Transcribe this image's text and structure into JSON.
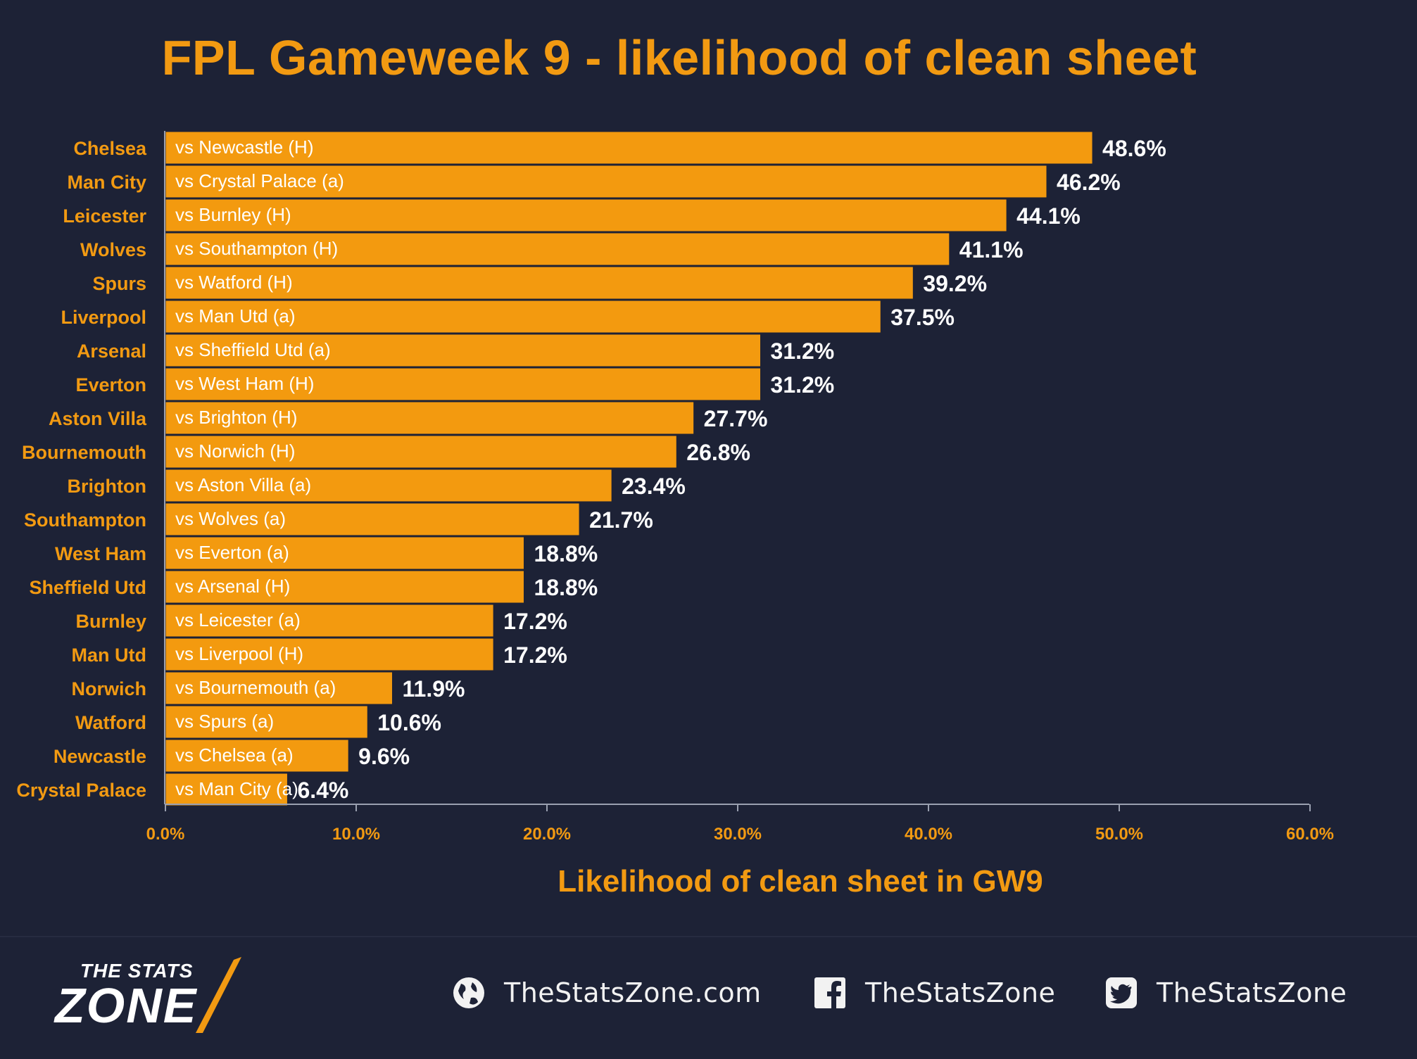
{
  "title": "FPL Gameweek 9 - likelihood of clean sheet",
  "chart_data": {
    "type": "bar",
    "orientation": "horizontal",
    "title": "FPL Gameweek 9 - likelihood of clean sheet",
    "xlabel": "Likelihood of clean sheet in GW9",
    "ylabel": "",
    "xlim": [
      0,
      60
    ],
    "x_ticks": [
      "0.0%",
      "10.0%",
      "20.0%",
      "30.0%",
      "40.0%",
      "50.0%",
      "60.0%"
    ],
    "grid": false,
    "colors": {
      "bar": "#f39a0f",
      "team_label": "#f29a12",
      "value_label": "#ffffff",
      "background": "#1d2236"
    },
    "categories": [
      "Chelsea",
      "Man City",
      "Leicester",
      "Wolves",
      "Spurs",
      "Liverpool",
      "Arsenal",
      "Everton",
      "Aston Villa",
      "Bournemouth",
      "Brighton",
      "Southampton",
      "West Ham",
      "Sheffield Utd",
      "Burnley",
      "Man Utd",
      "Norwich",
      "Watford",
      "Newcastle",
      "Crystal Palace"
    ],
    "fixtures": [
      "vs Newcastle (H)",
      "vs Crystal Palace (a)",
      "vs Burnley (H)",
      "vs Southampton (H)",
      "vs Watford (H)",
      "vs Man Utd (a)",
      "vs Sheffield Utd (a)",
      "vs West Ham (H)",
      "vs Brighton (H)",
      "vs Norwich (H)",
      "vs Aston Villa (a)",
      "vs Wolves (a)",
      "vs Everton (a)",
      "vs Arsenal (H)",
      "vs Leicester (a)",
      "vs Liverpool (H)",
      "vs Bournemouth (a)",
      "vs Spurs (a)",
      "vs Chelsea (a)",
      "vs Man City (a)"
    ],
    "values": [
      48.6,
      46.2,
      44.1,
      41.1,
      39.2,
      37.5,
      31.2,
      31.2,
      27.7,
      26.8,
      23.4,
      21.7,
      18.8,
      18.8,
      17.2,
      17.2,
      11.9,
      10.6,
      9.6,
      6.4
    ],
    "value_labels": [
      "48.6%",
      "46.2%",
      "44.1%",
      "41.1%",
      "39.2%",
      "37.5%",
      "31.2%",
      "31.2%",
      "27.7%",
      "26.8%",
      "23.4%",
      "21.7%",
      "18.8%",
      "18.8%",
      "17.2%",
      "17.2%",
      "11.9%",
      "10.6%",
      "9.6%",
      "6.4%"
    ]
  },
  "footer": {
    "logo_top": "THE STATS",
    "logo_bottom": "ZONE",
    "website": "TheStatsZone.com",
    "facebook": "TheStatsZone",
    "twitter": "TheStatsZone",
    "icons": [
      "globe-icon",
      "facebook-icon",
      "twitter-icon"
    ]
  }
}
